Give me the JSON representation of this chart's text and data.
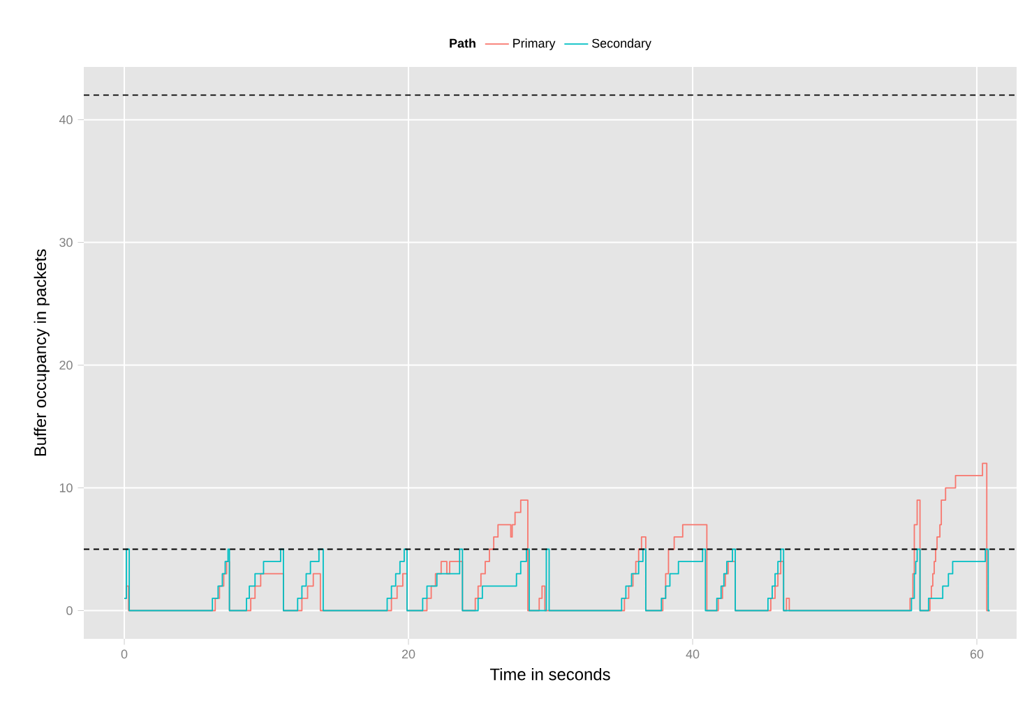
{
  "chart_data": {
    "type": "step",
    "xlabel": "Time in seconds",
    "ylabel": "Buffer occupancy in packets",
    "legend_title": "Path",
    "legend": "top",
    "grid": true,
    "xlim": [
      -2.85,
      62.8
    ],
    "ylim": [
      -2.3,
      44.3
    ],
    "xticks": [
      0,
      20,
      40,
      60
    ],
    "yticks": [
      0,
      10,
      20,
      30,
      40
    ],
    "ref_lines": [
      {
        "axis": "y",
        "value": 5,
        "color": "#000000",
        "line_style": "dashed"
      },
      {
        "axis": "y",
        "value": 42,
        "color": "#000000",
        "line_style": "dashed"
      }
    ],
    "series": [
      {
        "name": "Primary",
        "color": "#f8766d",
        "x": [
          0,
          0.15,
          0.3,
          6.4,
          6.7,
          7.0,
          7.2,
          7.4,
          8.9,
          9.2,
          9.6,
          11.2,
          12.5,
          12.9,
          13.3,
          13.8,
          18.8,
          19.2,
          19.6,
          19.9,
          21.3,
          21.6,
          21.9,
          22.3,
          22.7,
          22.9,
          23.8,
          24.7,
          24.9,
          25.1,
          25.4,
          25.7,
          26.0,
          26.3,
          27.2,
          27.3,
          27.5,
          27.9,
          28.4,
          29.2,
          29.4,
          29.6,
          35.2,
          35.5,
          35.8,
          36.0,
          36.2,
          36.4,
          36.7,
          37.9,
          38.1,
          38.3,
          38.7,
          39.3,
          41.0,
          41.8,
          42.1,
          42.3,
          42.5,
          43.0,
          45.5,
          45.8,
          46.0,
          46.2,
          46.4,
          46.6,
          46.8,
          55.3,
          55.5,
          55.6,
          55.8,
          56.0,
          56.7,
          56.8,
          56.9,
          57.0,
          57.1,
          57.2,
          57.4,
          57.5,
          57.8,
          58.5,
          60.4,
          60.7,
          60.9
        ],
        "values": [
          1,
          2,
          0,
          1,
          2,
          3,
          4,
          0,
          1,
          2,
          3,
          0,
          1,
          2,
          3,
          0,
          1,
          2,
          3,
          0,
          1,
          2,
          3,
          4,
          3,
          4,
          0,
          1,
          2,
          3,
          4,
          5,
          6,
          7,
          6,
          7,
          8,
          9,
          0,
          1,
          2,
          0,
          1,
          2,
          3,
          4,
          5,
          6,
          0,
          1,
          3,
          5,
          6,
          7,
          0,
          1,
          2,
          3,
          4,
          0,
          1,
          2,
          3,
          4,
          0,
          1,
          0,
          1,
          3,
          7,
          9,
          0,
          1,
          2,
          3,
          4,
          5,
          6,
          7,
          9,
          10,
          11,
          12,
          0,
          0
        ]
      },
      {
        "name": "Secondary",
        "color": "#00bfc4",
        "x": [
          0,
          0.15,
          0.35,
          6.2,
          6.6,
          6.9,
          7.1,
          7.3,
          7.4,
          8.6,
          8.8,
          9.2,
          9.8,
          11.0,
          11.2,
          12.2,
          12.5,
          12.8,
          13.1,
          13.7,
          14.0,
          18.5,
          18.8,
          19.1,
          19.4,
          19.7,
          19.9,
          21.0,
          21.3,
          22.0,
          23.6,
          23.8,
          24.9,
          25.2,
          27.6,
          27.9,
          28.3,
          28.5,
          29.7,
          29.9,
          35.0,
          35.3,
          35.7,
          36.2,
          36.5,
          36.7,
          37.8,
          38.1,
          38.4,
          39.0,
          40.7,
          40.9,
          41.7,
          42.0,
          42.2,
          42.4,
          42.8,
          43.0,
          45.3,
          45.6,
          45.8,
          46.0,
          46.2,
          46.4,
          55.4,
          55.6,
          55.7,
          55.8,
          56.0,
          56.6,
          57.6,
          58.0,
          58.3,
          60.6,
          60.8,
          60.9
        ],
        "values": [
          1,
          5,
          0,
          1,
          2,
          3,
          4,
          5,
          0,
          1,
          2,
          3,
          4,
          5,
          0,
          1,
          2,
          3,
          4,
          5,
          0,
          1,
          2,
          3,
          4,
          5,
          0,
          1,
          2,
          3,
          5,
          0,
          1,
          2,
          3,
          4,
          5,
          0,
          5,
          0,
          1,
          2,
          3,
          4,
          5,
          0,
          1,
          2,
          3,
          4,
          5,
          0,
          1,
          2,
          3,
          4,
          5,
          0,
          1,
          2,
          3,
          4,
          5,
          0,
          1,
          3,
          4,
          5,
          0,
          1,
          2,
          3,
          4,
          5,
          0,
          0
        ]
      }
    ]
  }
}
